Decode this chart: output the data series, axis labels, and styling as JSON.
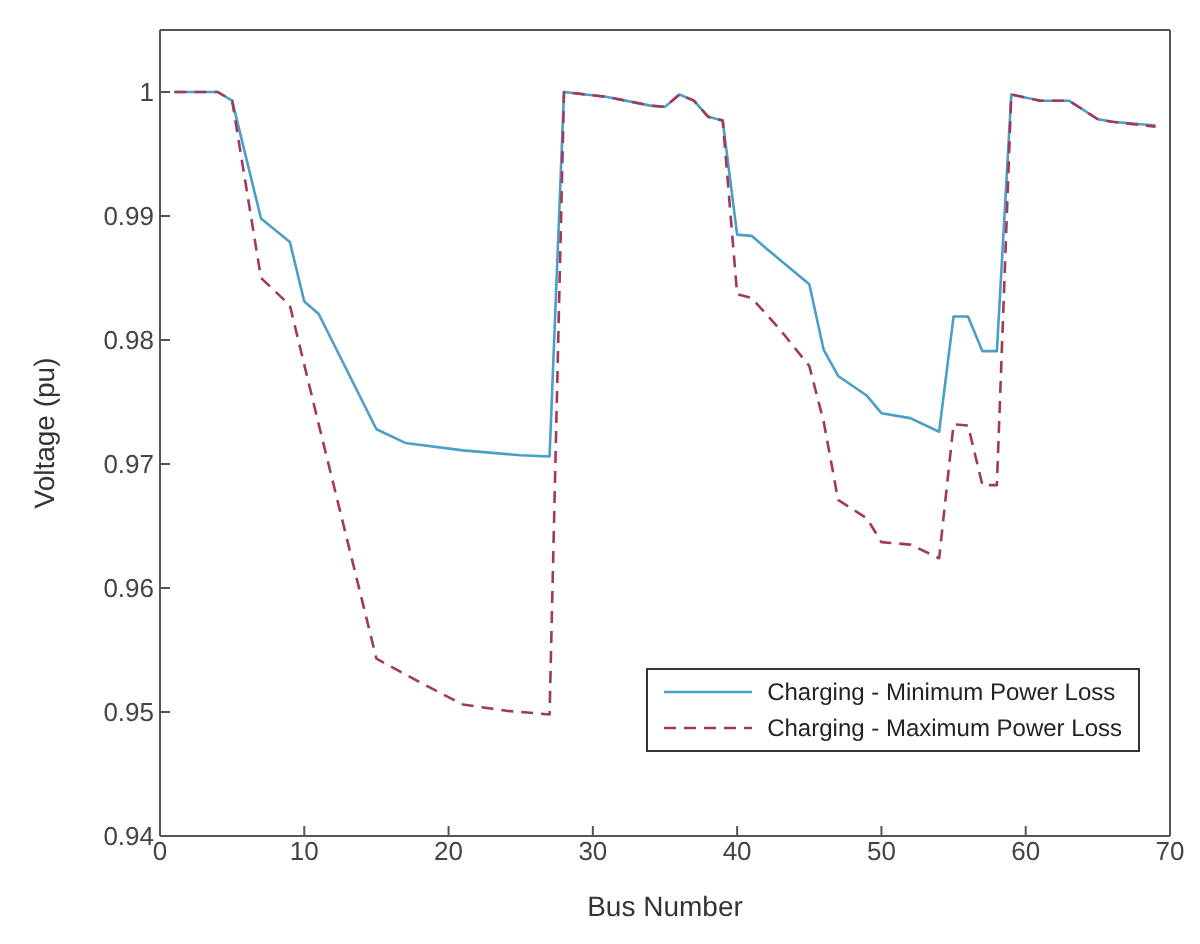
{
  "chart_data": {
    "type": "line",
    "xlabel": "Bus Number",
    "ylabel": "Voltage (pu)",
    "xlim": [
      0,
      70
    ],
    "xticks": [
      0,
      10,
      20,
      30,
      40,
      50,
      60,
      70
    ],
    "ylim": [
      0.94,
      1.005
    ],
    "yticks": [
      0.94,
      0.95,
      0.96,
      0.97,
      0.98,
      0.99,
      1
    ],
    "legend": "bottom right",
    "series": [
      {
        "name": "Charging - Minimum Power Loss",
        "color": "#4a9fc6",
        "line_style": "solid",
        "x": [
          1,
          4,
          5,
          7,
          9,
          10,
          11,
          15,
          17,
          21,
          25,
          27,
          28,
          31,
          34,
          35,
          36,
          37,
          38,
          39,
          40,
          41,
          42,
          45,
          46,
          47,
          49,
          50,
          52,
          54,
          55,
          56,
          57,
          58,
          59,
          61,
          63,
          65,
          66,
          69
        ],
        "values": [
          1,
          1,
          0.9993,
          0.9898,
          0.9879,
          0.9831,
          0.9821,
          0.9728,
          0.9717,
          0.9711,
          0.9707,
          0.9706,
          1,
          0.9996,
          0.9989,
          0.9988,
          0.9998,
          0.9993,
          0.998,
          0.9977,
          0.9885,
          0.9884,
          0.9874,
          0.9845,
          0.9792,
          0.9771,
          0.9755,
          0.9741,
          0.9737,
          0.9726,
          0.9819,
          0.9819,
          0.9791,
          0.9791,
          0.9998,
          0.9993,
          0.9993,
          0.9978,
          0.9976,
          0.9973
        ]
      },
      {
        "name": "Charging - Maximum Power Loss",
        "color": "#a2395b",
        "line_style": "dashed",
        "x": [
          1,
          4,
          5,
          7,
          9,
          11,
          15,
          18,
          21,
          24,
          27,
          28,
          31,
          34,
          35,
          36,
          37,
          38,
          39,
          40,
          41,
          43,
          45,
          46,
          47,
          49,
          50,
          52,
          54,
          55,
          56,
          57,
          58,
          59,
          61,
          63,
          65,
          66,
          69
        ],
        "values": [
          1,
          1,
          0.9993,
          0.985,
          0.9828,
          0.9732,
          0.9543,
          0.9524,
          0.9506,
          0.9501,
          0.9498,
          1,
          0.9996,
          0.9989,
          0.9988,
          0.9998,
          0.9993,
          0.998,
          0.9977,
          0.9837,
          0.9834,
          0.9808,
          0.9779,
          0.9734,
          0.9671,
          0.9656,
          0.9637,
          0.9635,
          0.9624,
          0.9732,
          0.9731,
          0.9683,
          0.9683,
          0.9998,
          0.9993,
          0.9993,
          0.9978,
          0.9976,
          0.9972
        ]
      }
    ]
  }
}
